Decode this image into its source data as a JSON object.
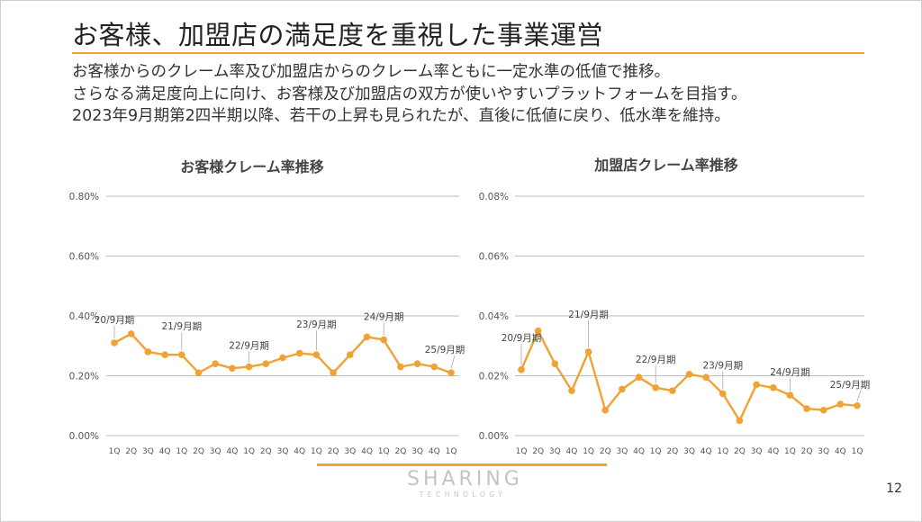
{
  "slide": {
    "title": "お客様、加盟店の満足度を重視した事業運営",
    "lines": [
      "お客様からのクレーム率及び加盟店からのクレーム率ともに一定水準の低値で推移。",
      "さらなる満足度向上に向け、お客様及び加盟店の双方が使いやすいプラットフォームを目指す。",
      "2023年9月期第2四半期以降、若干の上昇も見られたが、直後に低値に戻り、低水準を維持。"
    ],
    "page_number": "12",
    "logo_main": "SHARING",
    "logo_sub": "TECHNOLOGY",
    "accent_color": "#f0a235"
  },
  "chart_data": [
    {
      "type": "line",
      "title": "お客様クレーム率推移",
      "categories": [
        "1Q",
        "2Q",
        "3Q",
        "4Q",
        "1Q",
        "2Q",
        "3Q",
        "4Q",
        "1Q",
        "2Q",
        "3Q",
        "4Q",
        "1Q",
        "2Q",
        "3Q",
        "4Q",
        "1Q",
        "2Q",
        "3Q",
        "4Q",
        "1Q"
      ],
      "values": [
        0.31,
        0.34,
        0.28,
        0.27,
        0.27,
        0.21,
        0.24,
        0.225,
        0.23,
        0.24,
        0.26,
        0.275,
        0.27,
        0.21,
        0.27,
        0.33,
        0.32,
        0.23,
        0.24,
        0.23,
        0.21
      ],
      "yticks": [
        "0.00%",
        "0.20%",
        "0.40%",
        "0.60%",
        "0.80%"
      ],
      "ylim": [
        0,
        0.8
      ],
      "annotations": [
        {
          "index": 0,
          "text": "20/9月期"
        },
        {
          "index": 4,
          "text": "21/9月期"
        },
        {
          "index": 8,
          "text": "22/9月期"
        },
        {
          "index": 12,
          "text": "23/9月期"
        },
        {
          "index": 16,
          "text": "24/9月期"
        },
        {
          "index": 20,
          "text": "25/9月期"
        }
      ],
      "grid": true,
      "line_color": "#f0a235"
    },
    {
      "type": "line",
      "title": "加盟店クレーム率推移",
      "categories": [
        "1Q",
        "2Q",
        "3Q",
        "4Q",
        "1Q",
        "2Q",
        "3Q",
        "4Q",
        "1Q",
        "2Q",
        "3Q",
        "4Q",
        "1Q",
        "2Q",
        "3Q",
        "4Q",
        "1Q",
        "2Q",
        "3Q",
        "4Q",
        "1Q"
      ],
      "values": [
        0.022,
        0.035,
        0.024,
        0.015,
        0.028,
        0.0085,
        0.0155,
        0.0195,
        0.016,
        0.015,
        0.0205,
        0.0195,
        0.014,
        0.005,
        0.017,
        0.016,
        0.0135,
        0.009,
        0.0085,
        0.0105,
        0.01
      ],
      "yticks": [
        "0.00%",
        "0.02%",
        "0.04%",
        "0.06%",
        "0.08%"
      ],
      "ylim": [
        0,
        0.08
      ],
      "annotations": [
        {
          "index": 0,
          "text": "20/9月期"
        },
        {
          "index": 4,
          "text": "21/9月期"
        },
        {
          "index": 8,
          "text": "22/9月期"
        },
        {
          "index": 12,
          "text": "23/9月期"
        },
        {
          "index": 16,
          "text": "24/9月期"
        },
        {
          "index": 20,
          "text": "25/9月期"
        }
      ],
      "grid": true,
      "line_color": "#f0a235"
    }
  ]
}
